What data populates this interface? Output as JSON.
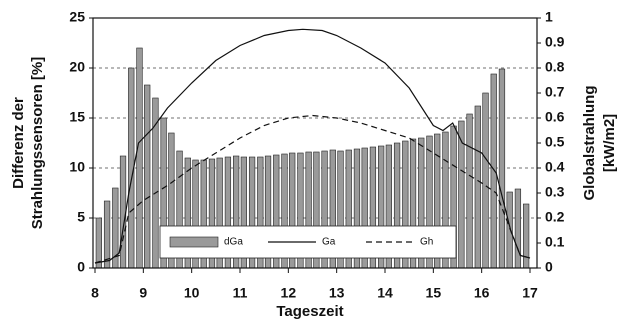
{
  "chart_data": {
    "type": "bar-line",
    "xlabel": "Tageszeit",
    "ylabel": [
      "Differenz der",
      "Strahlungssensoren [%]"
    ],
    "y2label": [
      "Globalstrahlung",
      "[kW/m2]"
    ],
    "xlim": [
      8,
      17
    ],
    "xticks": [
      8,
      9,
      10,
      11,
      12,
      13,
      14,
      15,
      16,
      17
    ],
    "ylim": [
      0,
      25
    ],
    "yticks": [
      0,
      5,
      10,
      15,
      20,
      25
    ],
    "y2lim": [
      0,
      1
    ],
    "y2ticks": [
      0,
      0.1,
      0.2,
      0.3,
      0.4,
      0.5,
      0.6,
      0.7,
      0.8,
      0.9,
      1
    ],
    "grid": true,
    "series": [
      {
        "name": "dGa",
        "kind": "bar",
        "color": "#9a9a9a",
        "x": [
          8.08,
          8.25,
          8.42,
          8.58,
          8.75,
          8.92,
          9.08,
          9.25,
          9.42,
          9.58,
          9.75,
          9.92,
          10.08,
          10.25,
          10.42,
          10.58,
          10.75,
          10.92,
          11.08,
          11.25,
          11.42,
          11.58,
          11.75,
          11.92,
          12.08,
          12.25,
          12.42,
          12.58,
          12.75,
          12.92,
          13.08,
          13.25,
          13.42,
          13.58,
          13.75,
          13.92,
          14.08,
          14.25,
          14.42,
          14.58,
          14.75,
          14.92,
          15.08,
          15.25,
          15.42,
          15.58,
          15.75,
          15.92,
          16.08,
          16.25,
          16.42,
          16.58,
          16.75,
          16.92
        ],
        "values": [
          5,
          6.7,
          8,
          11.2,
          20,
          22,
          18.3,
          17,
          15,
          13.5,
          11.7,
          11,
          10.8,
          10.8,
          10.9,
          11,
          11.1,
          11.2,
          11.1,
          11.1,
          11.1,
          11.2,
          11.3,
          11.4,
          11.5,
          11.5,
          11.6,
          11.6,
          11.7,
          11.8,
          11.7,
          11.8,
          11.9,
          12,
          12.1,
          12.2,
          12.3,
          12.5,
          12.7,
          12.9,
          13,
          13.2,
          13.4,
          13.6,
          14.2,
          14.7,
          15.4,
          16.2,
          17.5,
          19.4,
          19.9,
          7.6,
          7.9,
          6.4
        ]
      },
      {
        "name": "Ga",
        "kind": "line",
        "axis": "y2",
        "color": "#111111",
        "dash": false,
        "x": [
          8.0,
          8.3,
          8.5,
          8.7,
          8.9,
          9.2,
          9.5,
          10,
          10.5,
          11,
          11.5,
          12,
          12.3,
          12.7,
          13,
          13.5,
          14,
          14.5,
          15,
          15.2,
          15.4,
          15.6,
          16,
          16.3,
          16.6,
          16.8,
          17
        ],
        "values": [
          0.02,
          0.03,
          0.06,
          0.3,
          0.5,
          0.56,
          0.64,
          0.74,
          0.83,
          0.89,
          0.93,
          0.95,
          0.955,
          0.95,
          0.93,
          0.88,
          0.82,
          0.72,
          0.57,
          0.55,
          0.58,
          0.5,
          0.46,
          0.38,
          0.15,
          0.05,
          0.04
        ]
      },
      {
        "name": "Gh",
        "kind": "line",
        "axis": "y2",
        "color": "#111111",
        "dash": true,
        "x": [
          8.0,
          8.5,
          8.7,
          9,
          9.5,
          10,
          10.5,
          11,
          11.5,
          12,
          12.5,
          13,
          13.5,
          14,
          14.5,
          15,
          15.5,
          16,
          16.3,
          16.6,
          16.8,
          17
        ],
        "values": [
          0.02,
          0.05,
          0.22,
          0.27,
          0.33,
          0.4,
          0.46,
          0.52,
          0.57,
          0.6,
          0.61,
          0.6,
          0.58,
          0.55,
          0.52,
          0.46,
          0.4,
          0.34,
          0.3,
          0.15,
          0.05,
          0.04
        ]
      }
    ]
  }
}
